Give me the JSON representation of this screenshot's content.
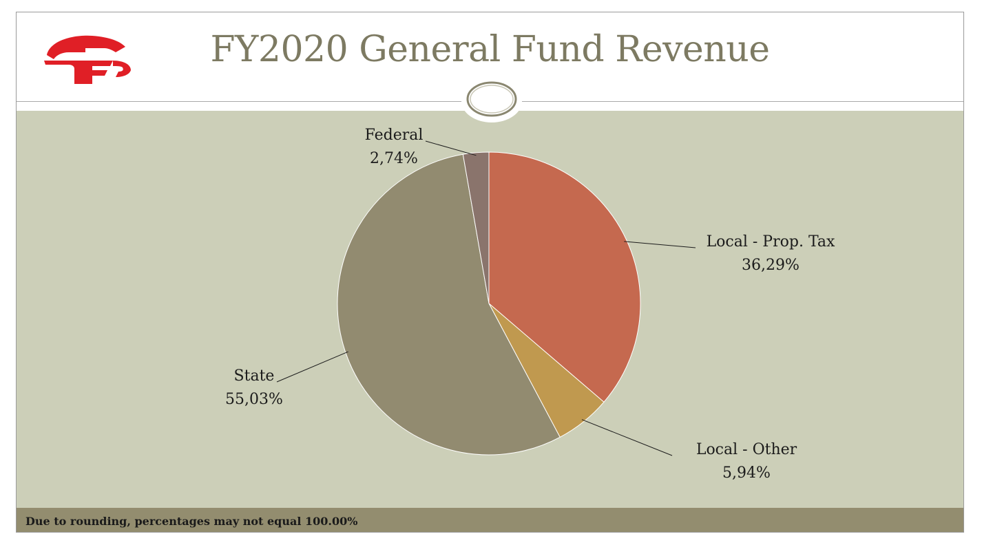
{
  "slide": {
    "title": "FY2020 General Fund Revenue",
    "footnote": "Due to rounding, percentages may not equal 100.00%",
    "logo_name": "district-logo-icon",
    "colors": {
      "title": "#7d7a62",
      "body_bg": "#cccfb8",
      "footer_bg": "#938d6f",
      "logo": "#e01f26"
    }
  },
  "chart_data": {
    "type": "pie",
    "title": "FY2020 General Fund Revenue",
    "start_angle_deg": 0,
    "direction": "clockwise",
    "slices": [
      {
        "name": "Local - Prop. Tax",
        "value": 36.29,
        "label": "36,29%",
        "color": "#c5694f"
      },
      {
        "name": "Local - Other",
        "value": 5.94,
        "label": "5,94%",
        "color": "#c0994f"
      },
      {
        "name": "State",
        "value": 55.03,
        "label": "55,03%",
        "color": "#928b70"
      },
      {
        "name": "Federal",
        "value": 2.74,
        "label": "2,74%",
        "color": "#8a746c"
      }
    ]
  }
}
